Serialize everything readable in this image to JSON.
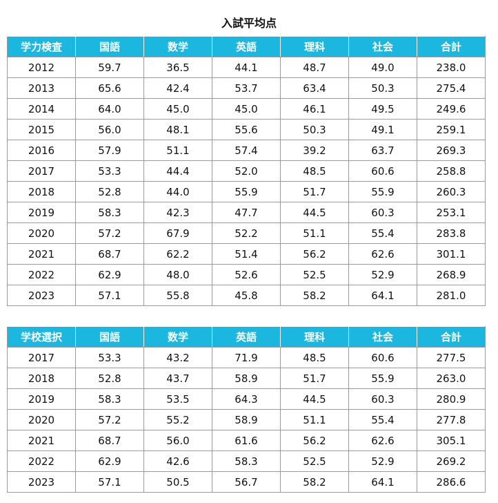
{
  "title": "入試平均点",
  "table1": {
    "headers": [
      "学力検査",
      "国語",
      "数学",
      "英語",
      "理科",
      "社会",
      "合計"
    ],
    "rows": [
      [
        "2012",
        "59.7",
        "36.5",
        "44.1",
        "48.7",
        "49.0",
        "238.0"
      ],
      [
        "2013",
        "65.6",
        "42.4",
        "53.7",
        "63.4",
        "50.3",
        "275.4"
      ],
      [
        "2014",
        "64.0",
        "45.0",
        "45.0",
        "46.1",
        "49.5",
        "249.6"
      ],
      [
        "2015",
        "56.0",
        "48.1",
        "55.6",
        "50.3",
        "49.1",
        "259.1"
      ],
      [
        "2016",
        "57.9",
        "51.1",
        "57.4",
        "39.2",
        "63.7",
        "269.3"
      ],
      [
        "2017",
        "53.3",
        "44.4",
        "52.0",
        "48.5",
        "60.6",
        "258.8"
      ],
      [
        "2018",
        "52.8",
        "44.0",
        "55.9",
        "51.7",
        "55.9",
        "260.3"
      ],
      [
        "2019",
        "58.3",
        "42.3",
        "47.7",
        "44.5",
        "60.3",
        "253.1"
      ],
      [
        "2020",
        "57.2",
        "67.9",
        "52.2",
        "51.1",
        "55.4",
        "283.8"
      ],
      [
        "2021",
        "68.7",
        "62.2",
        "51.4",
        "56.2",
        "62.6",
        "301.1"
      ],
      [
        "2022",
        "62.9",
        "48.0",
        "52.6",
        "52.5",
        "52.9",
        "268.9"
      ],
      [
        "2023",
        "57.1",
        "55.8",
        "45.8",
        "58.2",
        "64.1",
        "281.0"
      ]
    ]
  },
  "table2": {
    "headers": [
      "学校選択",
      "国語",
      "数学",
      "英語",
      "理科",
      "社会",
      "合計"
    ],
    "rows": [
      [
        "2017",
        "53.3",
        "43.2",
        "71.9",
        "48.5",
        "60.6",
        "277.5"
      ],
      [
        "2018",
        "52.8",
        "43.7",
        "58.9",
        "51.7",
        "55.9",
        "263.0"
      ],
      [
        "2019",
        "58.3",
        "53.5",
        "64.3",
        "44.5",
        "60.3",
        "280.9"
      ],
      [
        "2020",
        "57.2",
        "55.2",
        "58.9",
        "51.1",
        "55.4",
        "277.8"
      ],
      [
        "2021",
        "68.7",
        "56.0",
        "61.6",
        "56.2",
        "62.6",
        "305.1"
      ],
      [
        "2022",
        "62.9",
        "42.6",
        "58.3",
        "52.5",
        "52.9",
        "269.2"
      ],
      [
        "2023",
        "57.1",
        "50.5",
        "56.7",
        "58.2",
        "64.1",
        "286.6"
      ]
    ]
  },
  "colors": {
    "header_background": "#1bb7df",
    "header_text": "#ffffff",
    "border": "#9a9a9a"
  }
}
